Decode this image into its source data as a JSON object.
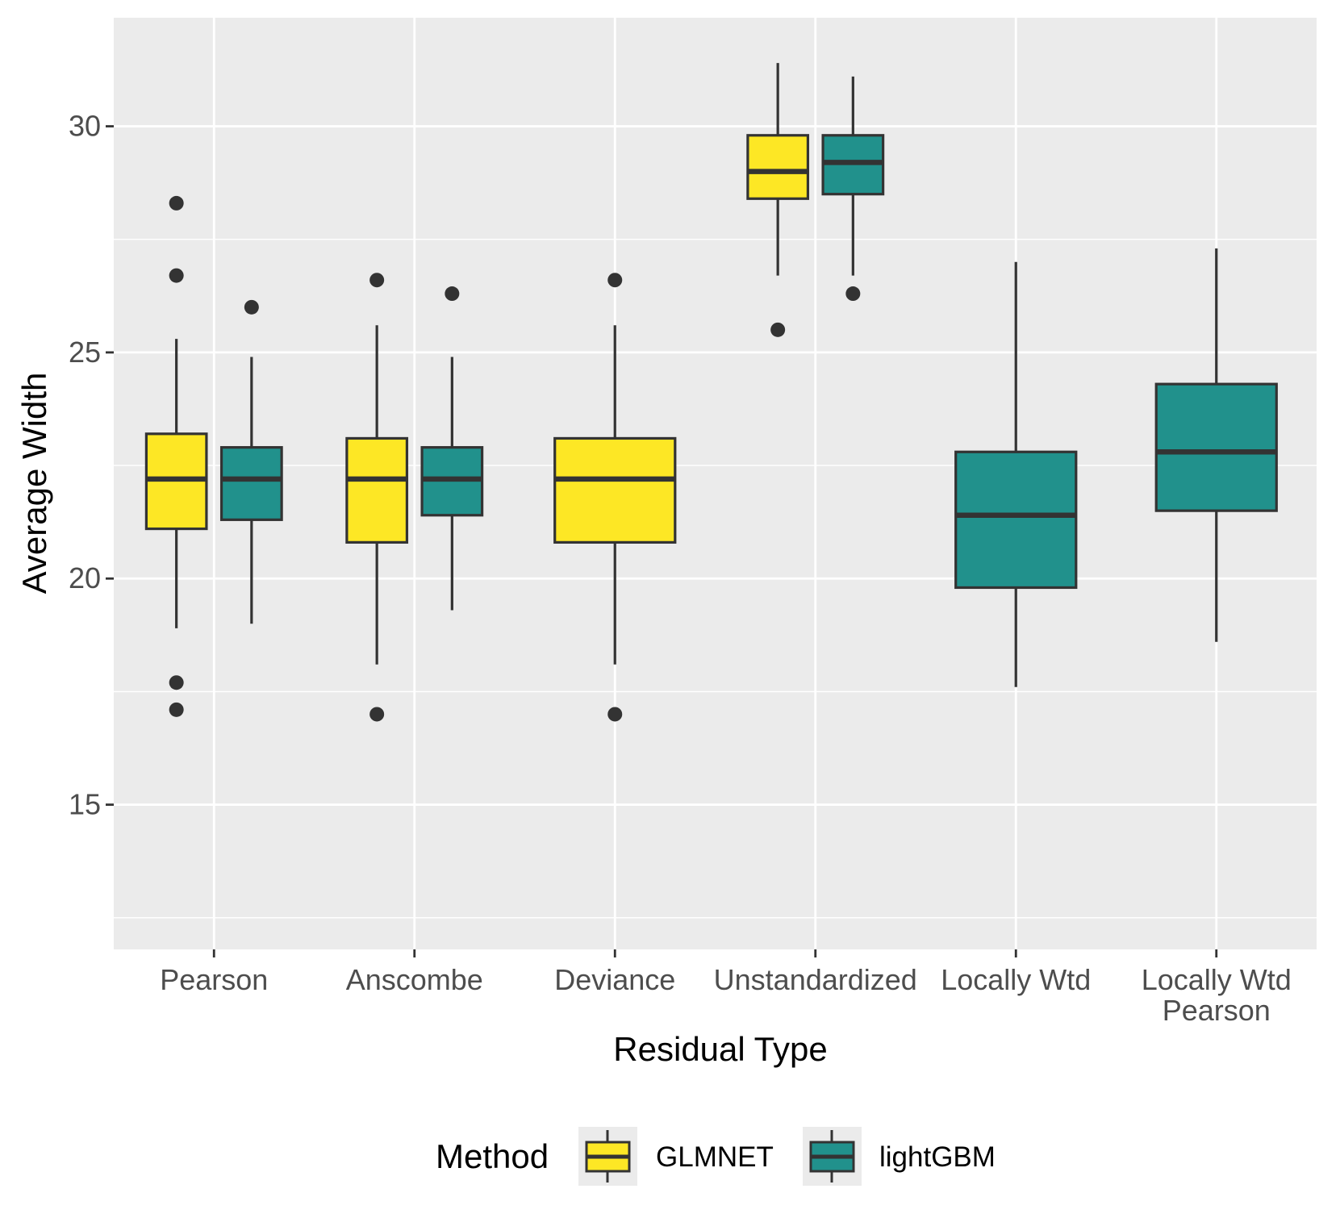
{
  "chart_data": {
    "type": "boxplot",
    "title": "",
    "xlabel": "Residual Type",
    "ylabel": "Average Width",
    "ylim": [
      11.8,
      32.4
    ],
    "y_ticks": [
      15,
      20,
      25,
      30
    ],
    "y_tick_labels": [
      "15",
      "20",
      "25",
      "30"
    ],
    "categories": [
      "Pearson",
      "Anscombe",
      "Deviance",
      "Unstandardized",
      "Locally Wtd",
      "Locally Wtd\nPearson"
    ],
    "legend": {
      "title": "Method",
      "position": "bottom",
      "entries": [
        "GLMNET",
        "lightGBM"
      ]
    },
    "series": [
      {
        "name": "GLMNET",
        "color": "#fde725",
        "boxes": [
          {
            "category": "Pearson",
            "whisker_low": 18.9,
            "q1": 21.1,
            "median": 22.2,
            "q3": 23.2,
            "whisker_high": 25.3,
            "outliers": [
              28.3,
              26.7,
              17.7,
              17.1
            ]
          },
          {
            "category": "Anscombe",
            "whisker_low": 18.1,
            "q1": 20.8,
            "median": 22.2,
            "q3": 23.1,
            "whisker_high": 25.6,
            "outliers": [
              26.6,
              17.0
            ]
          },
          {
            "category": "Deviance",
            "whisker_low": 18.1,
            "q1": 20.8,
            "median": 22.2,
            "q3": 23.1,
            "whisker_high": 25.6,
            "outliers": [
              26.6,
              17.0
            ]
          },
          {
            "category": "Unstandardized",
            "whisker_low": 26.7,
            "q1": 28.4,
            "median": 29.0,
            "q3": 29.8,
            "whisker_high": 31.4,
            "outliers": [
              25.5
            ]
          }
        ]
      },
      {
        "name": "lightGBM",
        "color": "#21918c",
        "boxes": [
          {
            "category": "Pearson",
            "whisker_low": 19.0,
            "q1": 21.3,
            "median": 22.2,
            "q3": 22.9,
            "whisker_high": 24.9,
            "outliers": [
              26.0
            ]
          },
          {
            "category": "Anscombe",
            "whisker_low": 19.3,
            "q1": 21.4,
            "median": 22.2,
            "q3": 22.9,
            "whisker_high": 24.9,
            "outliers": [
              26.3
            ]
          },
          {
            "category": "Unstandardized",
            "whisker_low": 26.7,
            "q1": 28.5,
            "median": 29.2,
            "q3": 29.8,
            "whisker_high": 31.1,
            "outliers": [
              26.3
            ]
          },
          {
            "category": "Locally Wtd",
            "whisker_low": 17.6,
            "q1": 19.8,
            "median": 21.4,
            "q3": 22.8,
            "whisker_high": 27.0,
            "outliers": []
          },
          {
            "category": "Locally Wtd\nPearson",
            "whisker_low": 18.6,
            "q1": 21.5,
            "median": 22.8,
            "q3": 24.3,
            "whisker_high": 27.3,
            "outliers": []
          }
        ]
      }
    ]
  }
}
